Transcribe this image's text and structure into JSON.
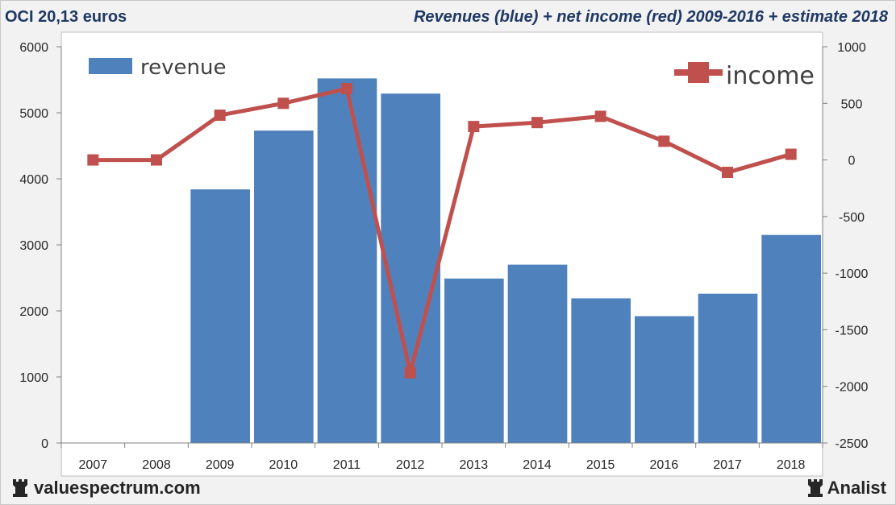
{
  "header": {
    "left": "OCI 20,13 euros",
    "right": "Revenues (blue) + net income (red) 2009-2016 + estimate 2018"
  },
  "footer": {
    "left": "valuespectrum.com",
    "right": "Analist",
    "left_icon": "rook-icon",
    "right_icon": "rook-icon"
  },
  "chart_data": {
    "type": "bar+line",
    "categories": [
      "2007",
      "2008",
      "2009",
      "2010",
      "2011",
      "2012",
      "2013",
      "2014",
      "2015",
      "2016",
      "2017",
      "2018"
    ],
    "series": [
      {
        "name": "revenue",
        "type": "bar",
        "axis": "left",
        "color": "#4f81bd",
        "values": [
          null,
          null,
          3840,
          4730,
          5520,
          5290,
          2490,
          2700,
          2190,
          1920,
          2260,
          3150
        ]
      },
      {
        "name": "income",
        "type": "line",
        "axis": "right",
        "color": "#c0504d",
        "values": [
          0,
          0,
          395,
          500,
          630,
          -1880,
          295,
          330,
          385,
          165,
          -110,
          50
        ]
      }
    ],
    "yleft": {
      "min": 0,
      "max": 6000,
      "ticks": [
        "0",
        "1000",
        "2000",
        "3000",
        "4000",
        "5000",
        "6000"
      ]
    },
    "yright": {
      "min": -2500,
      "max": 1000,
      "ticks": [
        "-2500",
        "-2000",
        "-1500",
        "-1000",
        "-500",
        "0",
        "500",
        "1000"
      ]
    },
    "legend": [
      {
        "label": "revenue",
        "position": "top-left"
      },
      {
        "label": "income",
        "position": "top-right"
      }
    ]
  }
}
